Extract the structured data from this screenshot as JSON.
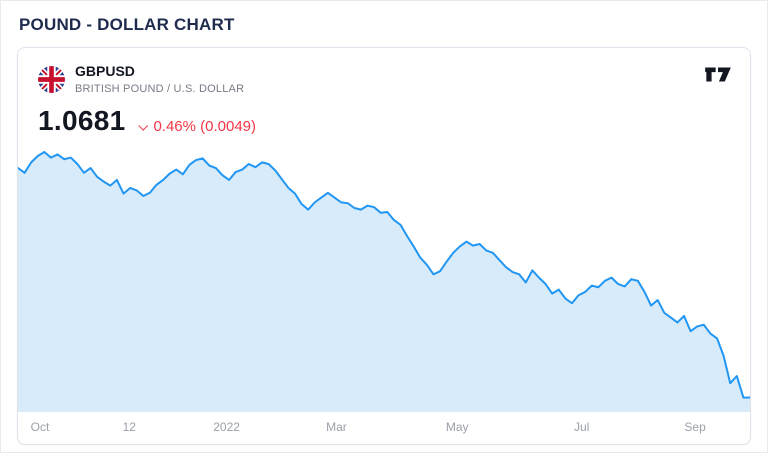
{
  "page": {
    "title": "POUND - DOLLAR CHART"
  },
  "widget": {
    "symbol": "GBPUSD",
    "subtitle": "BRITISH POUND / U.S. DOLLAR",
    "price": "1.0681",
    "change_direction": "down",
    "change_label": "0.46% (0.0049)",
    "logo": "tradingview-logo",
    "flag": "uk-flag-icon"
  },
  "colors": {
    "title": "#1e2b4d",
    "price_text": "#131722",
    "change_negative": "#f23645",
    "subtitle_gray": "#787b86",
    "axis_gray": "#9ba0aa",
    "card_border": "#e0e3eb"
  },
  "chart_data": {
    "type": "area",
    "title": "GBPUSD — British Pound / U.S. Dollar",
    "xlabel": "",
    "ylabel": "",
    "x_range": "Oct 2021 - Sep 2022",
    "ylim": [
      1.05,
      1.39
    ],
    "grid": false,
    "legend": "none",
    "line_color": "#2196f3",
    "fill_color": "#d7ebfa",
    "x_labels": [
      {
        "label": "Oct",
        "pos": 0.03
      },
      {
        "label": "12",
        "pos": 0.152
      },
      {
        "label": "2022",
        "pos": 0.285
      },
      {
        "label": "Mar",
        "pos": 0.435
      },
      {
        "label": "May",
        "pos": 0.6
      },
      {
        "label": "Jul",
        "pos": 0.77
      },
      {
        "label": "Sep",
        "pos": 0.925
      }
    ],
    "values": [
      1.355,
      1.349,
      1.362,
      1.37,
      1.375,
      1.368,
      1.372,
      1.366,
      1.368,
      1.36,
      1.349,
      1.355,
      1.344,
      1.338,
      1.333,
      1.34,
      1.323,
      1.33,
      1.327,
      1.32,
      1.324,
      1.334,
      1.34,
      1.348,
      1.353,
      1.347,
      1.359,
      1.365,
      1.367,
      1.358,
      1.355,
      1.346,
      1.34,
      1.35,
      1.353,
      1.36,
      1.356,
      1.362,
      1.36,
      1.352,
      1.341,
      1.33,
      1.323,
      1.31,
      1.303,
      1.312,
      1.318,
      1.324,
      1.318,
      1.312,
      1.311,
      1.305,
      1.303,
      1.308,
      1.306,
      1.299,
      1.3,
      1.29,
      1.284,
      1.27,
      1.257,
      1.243,
      1.234,
      1.222,
      1.226,
      1.238,
      1.249,
      1.257,
      1.263,
      1.258,
      1.26,
      1.252,
      1.249,
      1.24,
      1.231,
      1.225,
      1.222,
      1.212,
      1.227,
      1.218,
      1.21,
      1.198,
      1.203,
      1.192,
      1.186,
      1.196,
      1.2,
      1.208,
      1.206,
      1.214,
      1.218,
      1.21,
      1.207,
      1.216,
      1.214,
      1.2,
      1.183,
      1.19,
      1.174,
      1.168,
      1.162,
      1.17,
      1.151,
      1.157,
      1.159,
      1.148,
      1.142,
      1.12,
      1.086,
      1.095,
      1.068,
      1.0681
    ]
  }
}
